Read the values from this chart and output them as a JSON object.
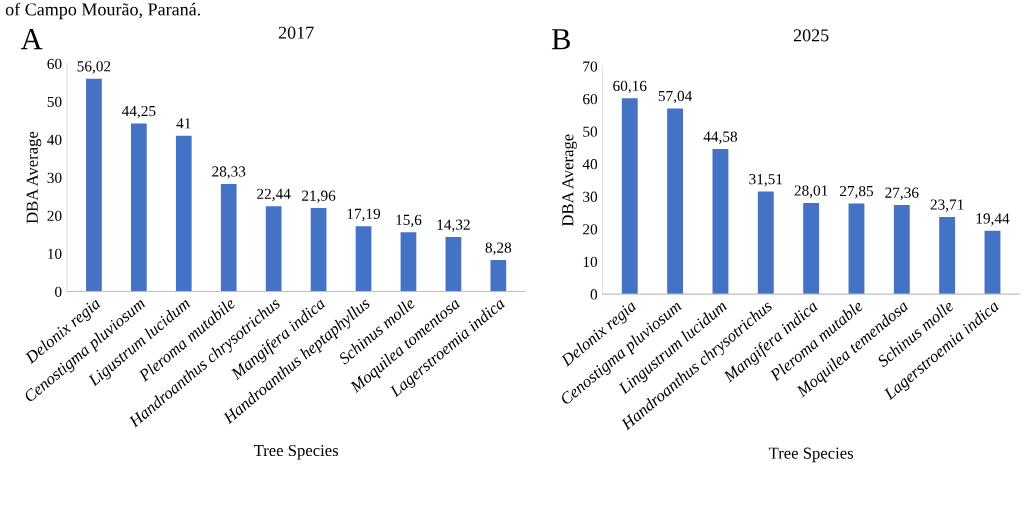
{
  "chart_data": [
    {
      "type": "bar",
      "title": "2017",
      "xlabel": "Tree Species",
      "ylabel": "DBA Average",
      "annotations": [
        "of Campo Mourão, Paraná.",
        "A"
      ],
      "categories": [
        "Delonix regia",
        "Cenostigma pluviosum",
        "Ligustrum lucidum",
        "Pleroma mutabile",
        "Handroanthus chrysotrichus",
        "Mangifera indica",
        "Handroanthus heptaphyllus",
        "Schinus molle",
        "Moquilea tomentosa",
        "Lagerstroemia indica"
      ],
      "values": [
        56.02,
        44.25,
        41,
        28.33,
        22.44,
        21.96,
        17.19,
        15.6,
        14.32,
        8.28
      ],
      "value_labels": [
        "56,02",
        "44,25",
        "41",
        "28,33",
        "22,44",
        "21,96",
        "17,19",
        "15,6",
        "14,32",
        "8,28"
      ],
      "color": "#4472c4",
      "ylim": [
        0,
        60
      ],
      "yticks": [
        0,
        10,
        20,
        30,
        40,
        50,
        60
      ],
      "grid": false,
      "legend": false
    },
    {
      "type": "bar",
      "title": "2025",
      "xlabel": "Tree Species",
      "ylabel": "DBA Average",
      "annotations": [
        "B"
      ],
      "categories": [
        "Delonix regia",
        "Cenostigma pluviosum",
        "Lingustrum lucidum",
        "Handroanthus chrysotrichus",
        "Mangifera indica",
        "Pleroma mutable",
        "Moquilea temendosa",
        "Schinus molle",
        "Lagerstroemia indica"
      ],
      "values": [
        60.16,
        57.04,
        44.58,
        31.51,
        28.01,
        27.85,
        27.36,
        23.71,
        19.44
      ],
      "value_labels": [
        "60,16",
        "57,04",
        "44,58",
        "31,51",
        "28,01",
        "27,85",
        "27,36",
        "23,71",
        "19,44"
      ],
      "color": "#4472c4",
      "ylim": [
        0,
        70
      ],
      "yticks": [
        0,
        10,
        20,
        30,
        40,
        50,
        60,
        70
      ],
      "grid": false,
      "legend": false
    }
  ]
}
